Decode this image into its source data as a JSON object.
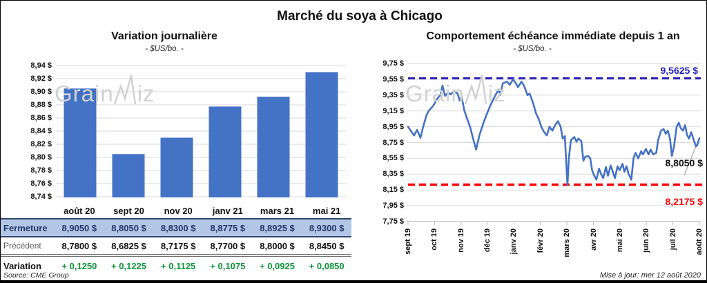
{
  "page": {
    "title": "Marché du soya à Chicago",
    "source": "Source: CME Group",
    "updated": "Mise à jour: mer 12 août 2020"
  },
  "watermark": {
    "text": "GrainWiz",
    "part1": "Grain",
    "part2": "iz"
  },
  "colors": {
    "bar": "#4472c4",
    "line": "#4472c4",
    "max_line": "#2a1fb8",
    "min_line": "#ff0000",
    "grid": "#d9d9d9",
    "axis": "#bfbfbf",
    "leader": "#a6a6a6",
    "fermeture_bg": "#b4c6e7",
    "fermeture_text": "#1f3864",
    "variation_green": "#089636"
  },
  "table": {
    "columns": [
      "août 20",
      "sept 20",
      "nov 20",
      "janv 21",
      "mars 21",
      "mai 21"
    ],
    "rows": [
      {
        "id": "fermeture",
        "label": "Fermeture",
        "values": [
          "8,9050 $",
          "8,8050 $",
          "8,8300 $",
          "8,8775 $",
          "8,8925 $",
          "8,9300 $"
        ]
      },
      {
        "id": "precedent",
        "label": "Précédent",
        "values": [
          "8,7800 $",
          "8,6825 $",
          "8,7175 $",
          "8,7700 $",
          "8,8000 $",
          "8,8450 $"
        ]
      },
      {
        "id": "variation",
        "label": "Variation",
        "values": [
          "+ 0,1250",
          "+ 0,1225",
          "+ 0,1125",
          "+ 0,1075",
          "+ 0,0925",
          "+ 0,0850"
        ]
      }
    ]
  },
  "chart_data": [
    {
      "type": "bar",
      "title": "Variation journalière",
      "subtitle": "- $US/bo. -",
      "categories": [
        "août 20",
        "sept 20",
        "nov 20",
        "janv 21",
        "mars 21",
        "mai 21"
      ],
      "values": [
        8.905,
        8.805,
        8.83,
        8.8775,
        8.8925,
        8.93
      ],
      "previous": [
        8.78,
        8.6825,
        8.7175,
        8.77,
        8.8,
        8.845
      ],
      "change": [
        0.125,
        0.1225,
        0.1125,
        0.1075,
        0.0925,
        0.085
      ],
      "ylim": [
        8.74,
        8.94
      ],
      "ytick_step": 0.02,
      "ytick_labels": [
        "8,94 $",
        "8,92 $",
        "8,90 $",
        "8,88 $",
        "8,86 $",
        "8,84 $",
        "8,82 $",
        "8,80 $",
        "8,78 $",
        "8,76 $",
        "8,74 $"
      ],
      "grid": true,
      "legend": "none"
    },
    {
      "type": "line",
      "title": "Comportement échéance immédiate depuis 1 an",
      "subtitle": "- $US/bo. -",
      "x_labels": [
        "sept 19",
        "oct 19",
        "nov 19",
        "déc 19",
        "janv 20",
        "févr 20",
        "mars 20",
        "avr 20",
        "mai 20",
        "juin 20",
        "juil 20",
        "août 20"
      ],
      "ylim": [
        7.75,
        9.75
      ],
      "ytick_step": 0.2,
      "ytick_labels": [
        "9,75 $",
        "9,55 $",
        "9,35 $",
        "9,15 $",
        "8,95 $",
        "8,75 $",
        "8,55 $",
        "8,35 $",
        "8,15 $",
        "7,95 $",
        "7,75 $"
      ],
      "grid": true,
      "legend": "none",
      "max_line": {
        "value": 9.5625,
        "label": "9,5625 $"
      },
      "min_line": {
        "value": 8.2175,
        "label": "8,2175 $"
      },
      "last_point": {
        "value": 8.805,
        "label": "8,8050 $"
      },
      "points": [
        [
          0,
          8.95
        ],
        [
          0.23,
          8.84
        ],
        [
          0.34,
          8.91
        ],
        [
          0.47,
          8.81
        ],
        [
          0.57,
          8.95
        ],
        [
          0.7,
          9.1
        ],
        [
          0.78,
          9.15
        ],
        [
          0.96,
          9.22
        ],
        [
          1.09,
          9.3
        ],
        [
          1.22,
          9.35
        ],
        [
          1.3,
          9.47
        ],
        [
          1.4,
          9.34
        ],
        [
          1.5,
          9.38
        ],
        [
          1.61,
          9.36
        ],
        [
          1.74,
          9.4
        ],
        [
          1.87,
          9.37
        ],
        [
          1.95,
          9.28
        ],
        [
          2.02,
          9.33
        ],
        [
          2.13,
          9.15
        ],
        [
          2.23,
          9.05
        ],
        [
          2.34,
          8.95
        ],
        [
          2.44,
          8.82
        ],
        [
          2.57,
          8.66
        ],
        [
          2.7,
          8.85
        ],
        [
          2.85,
          9.0
        ],
        [
          2.96,
          9.1
        ],
        [
          3.11,
          9.22
        ],
        [
          3.3,
          9.35
        ],
        [
          3.42,
          9.42
        ],
        [
          3.48,
          9.35
        ],
        [
          3.58,
          9.5
        ],
        [
          3.74,
          9.52
        ],
        [
          3.84,
          9.48
        ],
        [
          3.97,
          9.55
        ],
        [
          4.07,
          9.5
        ],
        [
          4.15,
          9.45
        ],
        [
          4.28,
          9.52
        ],
        [
          4.38,
          9.47
        ],
        [
          4.51,
          9.35
        ],
        [
          4.59,
          9.37
        ],
        [
          4.72,
          9.25
        ],
        [
          4.83,
          9.12
        ],
        [
          4.93,
          9.05
        ],
        [
          5.03,
          8.95
        ],
        [
          5.14,
          8.88
        ],
        [
          5.24,
          8.84
        ],
        [
          5.34,
          8.95
        ],
        [
          5.45,
          8.9
        ],
        [
          5.55,
          8.97
        ],
        [
          5.66,
          9.02
        ],
        [
          5.76,
          8.95
        ],
        [
          5.84,
          8.8
        ],
        [
          5.92,
          8.83
        ],
        [
          6.02,
          8.21
        ],
        [
          6.07,
          8.55
        ],
        [
          6.15,
          8.78
        ],
        [
          6.28,
          8.82
        ],
        [
          6.36,
          8.76
        ],
        [
          6.43,
          8.8
        ],
        [
          6.54,
          8.77
        ],
        [
          6.62,
          8.52
        ],
        [
          6.69,
          8.57
        ],
        [
          6.8,
          8.58
        ],
        [
          6.88,
          8.55
        ],
        [
          6.95,
          8.4
        ],
        [
          7.03,
          8.33
        ],
        [
          7.11,
          8.28
        ],
        [
          7.21,
          8.42
        ],
        [
          7.29,
          8.35
        ],
        [
          7.37,
          8.3
        ],
        [
          7.47,
          8.44
        ],
        [
          7.55,
          8.33
        ],
        [
          7.65,
          8.46
        ],
        [
          7.73,
          8.38
        ],
        [
          7.81,
          8.3
        ],
        [
          7.91,
          8.45
        ],
        [
          7.99,
          8.4
        ],
        [
          8.1,
          8.48
        ],
        [
          8.17,
          8.38
        ],
        [
          8.25,
          8.45
        ],
        [
          8.33,
          8.35
        ],
        [
          8.43,
          8.28
        ],
        [
          8.51,
          8.55
        ],
        [
          8.59,
          8.62
        ],
        [
          8.69,
          8.55
        ],
        [
          8.8,
          8.64
        ],
        [
          8.87,
          8.6
        ],
        [
          8.98,
          8.67
        ],
        [
          9.08,
          8.6
        ],
        [
          9.16,
          8.66
        ],
        [
          9.26,
          8.6
        ],
        [
          9.37,
          8.62
        ],
        [
          9.44,
          8.78
        ],
        [
          9.55,
          8.9
        ],
        [
          9.65,
          8.92
        ],
        [
          9.73,
          8.86
        ],
        [
          9.81,
          8.9
        ],
        [
          9.89,
          8.8
        ],
        [
          9.96,
          8.58
        ],
        [
          10.04,
          8.7
        ],
        [
          10.14,
          8.95
        ],
        [
          10.22,
          9.0
        ],
        [
          10.3,
          8.93
        ],
        [
          10.38,
          8.9
        ],
        [
          10.46,
          8.97
        ],
        [
          10.53,
          8.85
        ],
        [
          10.61,
          8.8
        ],
        [
          10.69,
          8.88
        ],
        [
          10.77,
          8.8
        ],
        [
          10.87,
          8.7
        ],
        [
          10.92,
          8.72
        ],
        [
          11,
          8.805
        ]
      ]
    }
  ]
}
